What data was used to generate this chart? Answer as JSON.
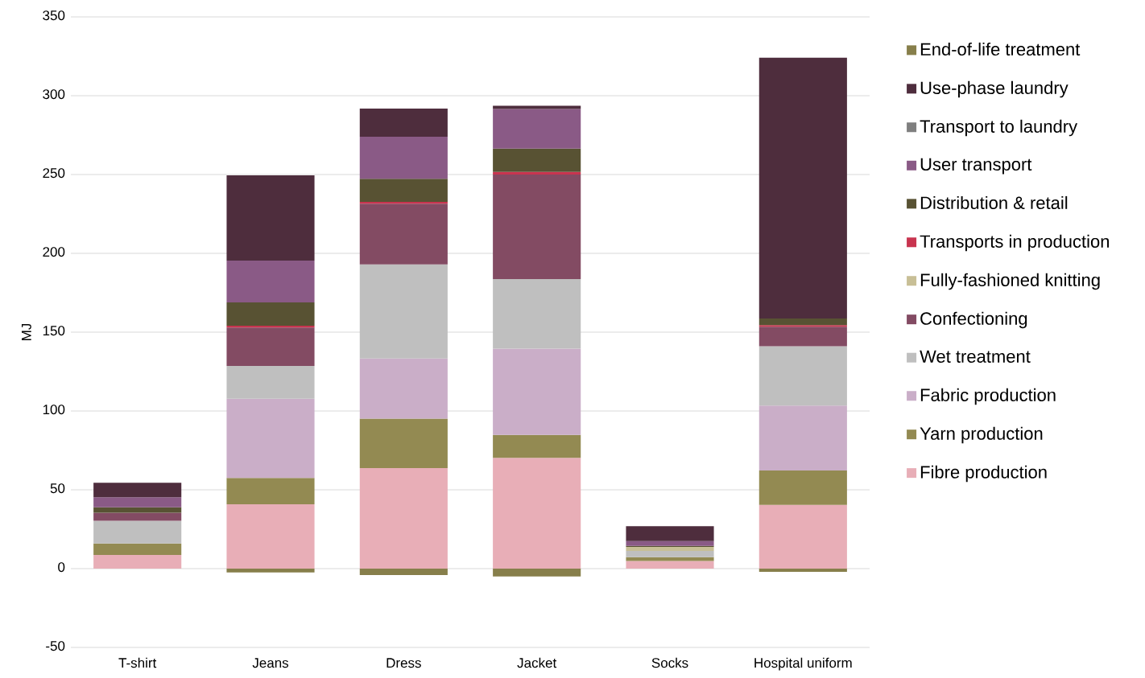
{
  "chart_data": {
    "type": "bar",
    "stacked": true,
    "ylabel": "MJ",
    "categories": [
      "T-shirt",
      "Jeans",
      "Dress",
      "Jacket",
      "Socks",
      "Hospital uniform"
    ],
    "series": [
      {
        "name": "Fibre production",
        "color": "#e8aeb7",
        "values": [
          8.7,
          40.8,
          63.8,
          70.3,
          4.9,
          40.4
        ]
      },
      {
        "name": "Yarn production",
        "color": "#938a52",
        "values": [
          7.3,
          16.7,
          31.4,
          14.5,
          2.4,
          21.9
        ]
      },
      {
        "name": "Fabric production",
        "color": "#caaec8",
        "values": [
          0,
          50.3,
          38.1,
          54.7,
          0,
          41.1
        ]
      },
      {
        "name": "Wet treatment",
        "color": "#bfbfbf",
        "values": [
          14.3,
          20.8,
          59.7,
          44.2,
          3.9,
          37.7
        ]
      },
      {
        "name": "Confectioning",
        "color": "#834b63",
        "values": [
          5.1,
          24.3,
          38.5,
          66.3,
          0,
          12.3
        ]
      },
      {
        "name": "Fully-fashioned knitting",
        "color": "#c8bf96",
        "values": [
          0,
          0,
          0,
          0,
          2.6,
          0
        ]
      },
      {
        "name": "Transports in production",
        "color": "#c8344f",
        "values": [
          0,
          1.2,
          1.2,
          1.6,
          0,
          1.0
        ]
      },
      {
        "name": "Distribution & retail",
        "color": "#585233",
        "values": [
          3.5,
          14.8,
          14.6,
          14.9,
          0.6,
          4.3
        ]
      },
      {
        "name": "User transport",
        "color": "#8a5a86",
        "values": [
          6.4,
          26.5,
          26.7,
          25.1,
          3.1,
          0
        ]
      },
      {
        "name": "Transport to laundry",
        "color": "#7f7f7f",
        "values": [
          0,
          0,
          0,
          0,
          0,
          0
        ]
      },
      {
        "name": "Use-phase laundry",
        "color": "#4e2d3d",
        "values": [
          9.1,
          54.1,
          17.8,
          2.0,
          9.4,
          165.4
        ]
      },
      {
        "name": "End-of-life treatment",
        "color": "#877f4b",
        "values": [
          0,
          -2.4,
          -4.1,
          -5,
          0,
          -2
        ]
      }
    ],
    "ylim": [
      -50,
      350
    ],
    "yticks": [
      -50,
      0,
      50,
      100,
      150,
      200,
      250,
      300,
      350
    ],
    "grid": "y",
    "legend": "right"
  }
}
